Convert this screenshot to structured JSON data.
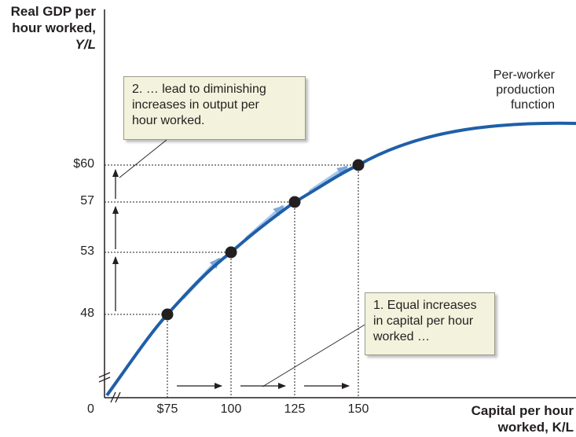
{
  "chart_data": {
    "type": "line",
    "ylabel_lines": [
      "Real GDP per",
      "hour worked,",
      "Y/L"
    ],
    "xlabel_lines": [
      "Capital per hour",
      "worked, K/L"
    ],
    "y_ticks": [
      {
        "label": "$60",
        "value": 60
      },
      {
        "label": "57",
        "value": 57
      },
      {
        "label": "53",
        "value": 53
      },
      {
        "label": "48",
        "value": 48
      }
    ],
    "x_ticks": [
      {
        "label": "$75",
        "value": 75
      },
      {
        "label": "100",
        "value": 100
      },
      {
        "label": "125",
        "value": 125
      },
      {
        "label": "150",
        "value": 150
      }
    ],
    "origin_label": "0",
    "axis_breaks": true,
    "series": [
      {
        "name": "Per-worker production function",
        "label_lines": [
          "Per-worker",
          "production",
          "function"
        ],
        "color": "#1f5fa8",
        "points": [
          {
            "x": 75,
            "y": 48
          },
          {
            "x": 100,
            "y": 53
          },
          {
            "x": 125,
            "y": 57
          },
          {
            "x": 150,
            "y": 60
          }
        ]
      }
    ],
    "annotations": [
      {
        "id": "callout1",
        "lines": [
          "1. Equal increases",
          "in capital per hour",
          "worked …"
        ]
      },
      {
        "id": "callout2",
        "lines": [
          "2. … lead to diminishing",
          "increases in output per",
          "hour worked."
        ]
      }
    ]
  }
}
